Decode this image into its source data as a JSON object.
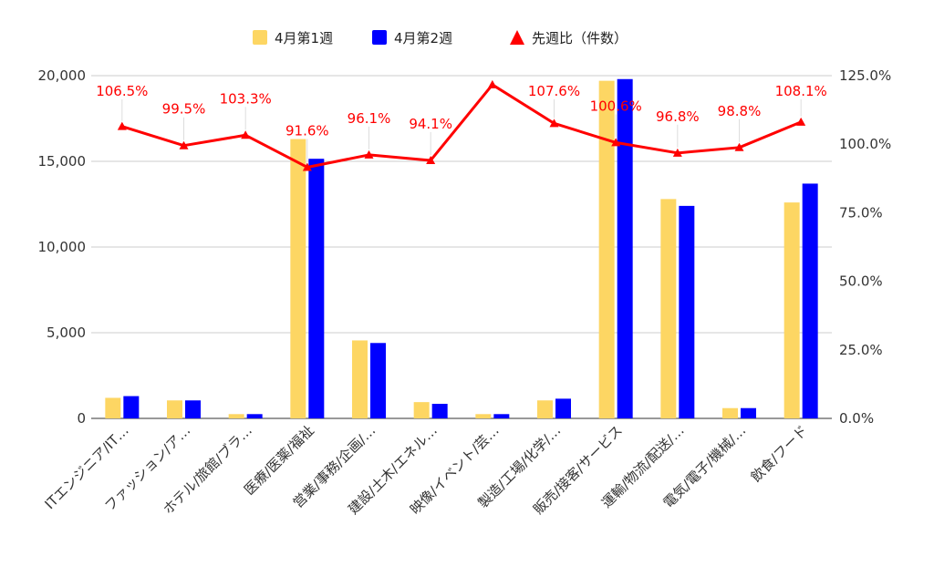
{
  "chart_data": {
    "type": "bar",
    "categories": [
      "ITエンジニア/IT…",
      "ファッション/ア…",
      "ホテル/旅館/ブラ…",
      "医療/医薬/福祉",
      "営業/事務/企画/…",
      "建設/土木/エネル…",
      "映像/イベント/芸…",
      "製造/工場/化学/…",
      "販売/接客/サービス",
      "運輸/物流/配送/…",
      "電気/電子/機械/…",
      "飲食/フード"
    ],
    "series": [
      {
        "name": "4月第1週",
        "type": "bar",
        "axis": "left",
        "color": "#fdd663",
        "values": [
          1200,
          1050,
          250,
          16300,
          4550,
          950,
          250,
          1050,
          19700,
          12800,
          600,
          12600
        ]
      },
      {
        "name": "4月第2週",
        "type": "bar",
        "axis": "left",
        "color": "#0000ff",
        "values": [
          1300,
          1050,
          250,
          15150,
          4400,
          850,
          250,
          1150,
          19800,
          12400,
          600,
          13700
        ]
      },
      {
        "name": "先週比（件数）",
        "type": "line",
        "axis": "right",
        "color": "#ff0000",
        "values": [
          106.5,
          99.5,
          103.3,
          91.6,
          96.1,
          94.1,
          121.7,
          107.6,
          100.6,
          96.8,
          98.8,
          108.1
        ],
        "labels": [
          "106.5%",
          "99.5%",
          "103.3%",
          "91.6%",
          "96.1%",
          "94.1%",
          "",
          "107.6%",
          "100.6%",
          "96.8%",
          "98.8%",
          "108.1%"
        ]
      }
    ],
    "ylim_left": [
      0,
      20000
    ],
    "yticks_left": [
      "0",
      "5,000",
      "10,000",
      "15,000",
      "20,000"
    ],
    "ylim_right": [
      0,
      125
    ],
    "yticks_right": [
      "0.0%",
      "25.0%",
      "50.0%",
      "75.0%",
      "100.0%",
      "125.0%"
    ],
    "grid": true,
    "legend_position": "top"
  }
}
